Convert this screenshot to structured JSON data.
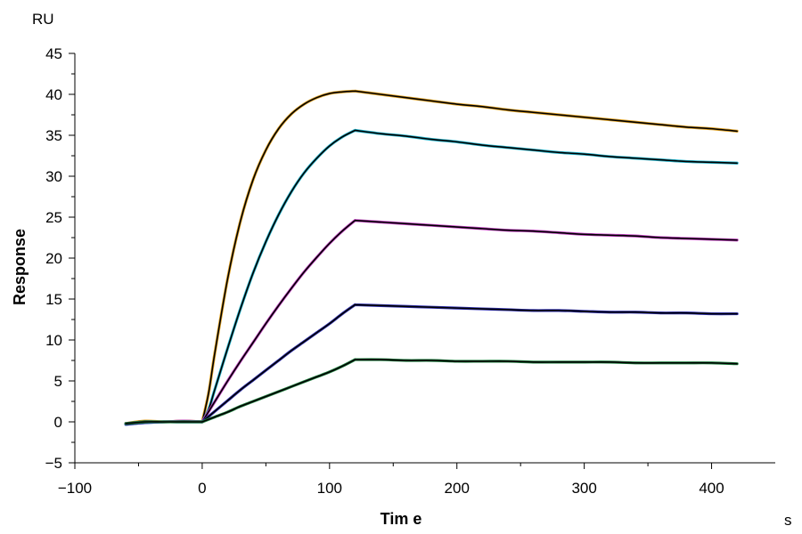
{
  "chart_data": {
    "type": "line",
    "title": "",
    "xlabel": "Tim e",
    "ylabel": "Response",
    "x_unit": "s",
    "y_unit": "RU",
    "xlim": [
      -100,
      450
    ],
    "ylim": [
      -5,
      45
    ],
    "x_ticks": [
      -100,
      0,
      100,
      200,
      300,
      400
    ],
    "y_ticks": [
      -5,
      0,
      5,
      10,
      15,
      20,
      25,
      30,
      35,
      40,
      45
    ],
    "grid": false,
    "legend": "none",
    "association_end": 120,
    "series": [
      {
        "color": "#e0a020",
        "x": [
          -60,
          -45,
          -30,
          -15,
          0,
          5,
          10,
          20,
          30,
          40,
          50,
          60,
          70,
          80,
          90,
          100,
          110,
          120,
          140,
          160,
          180,
          200,
          220,
          240,
          260,
          280,
          300,
          320,
          340,
          360,
          380,
          400,
          420
        ],
        "y": [
          -0.2,
          0.1,
          0.0,
          0.1,
          0.0,
          3.5,
          8.5,
          17.5,
          24.5,
          29.6,
          33.2,
          35.8,
          37.6,
          38.8,
          39.6,
          40.1,
          40.3,
          40.4,
          40.0,
          39.6,
          39.2,
          38.8,
          38.5,
          38.1,
          37.8,
          37.5,
          37.2,
          36.9,
          36.6,
          36.3,
          36.0,
          35.8,
          35.5
        ]
      },
      {
        "color": "#20b0c8",
        "x": [
          -60,
          -45,
          -30,
          -15,
          0,
          5,
          10,
          20,
          30,
          40,
          50,
          60,
          70,
          80,
          90,
          100,
          110,
          120,
          140,
          160,
          180,
          200,
          220,
          240,
          260,
          280,
          300,
          320,
          340,
          360,
          380,
          400,
          420
        ],
        "y": [
          -0.3,
          -0.1,
          0.0,
          0.0,
          0.0,
          1.5,
          4.0,
          9.0,
          13.8,
          18.2,
          22.0,
          25.3,
          28.1,
          30.4,
          32.2,
          33.7,
          34.8,
          35.6,
          35.2,
          34.9,
          34.5,
          34.2,
          33.8,
          33.5,
          33.2,
          32.9,
          32.7,
          32.4,
          32.2,
          32.0,
          31.8,
          31.7,
          31.6
        ]
      },
      {
        "color": "#c040c0",
        "x": [
          -60,
          -45,
          -30,
          -15,
          0,
          10,
          20,
          30,
          40,
          50,
          60,
          70,
          80,
          90,
          100,
          110,
          120,
          140,
          160,
          180,
          200,
          220,
          240,
          260,
          280,
          300,
          320,
          340,
          360,
          380,
          400,
          420
        ],
        "y": [
          -0.2,
          0.0,
          0.0,
          0.1,
          0.0,
          2.5,
          5.0,
          7.4,
          9.7,
          12.0,
          14.2,
          16.3,
          18.3,
          20.1,
          21.8,
          23.3,
          24.6,
          24.4,
          24.2,
          24.0,
          23.8,
          23.6,
          23.4,
          23.3,
          23.1,
          22.9,
          22.8,
          22.7,
          22.5,
          22.4,
          22.3,
          22.2
        ]
      },
      {
        "color": "#3030b0",
        "x": [
          -60,
          -45,
          -30,
          -15,
          0,
          10,
          20,
          30,
          40,
          50,
          60,
          70,
          80,
          90,
          100,
          110,
          120,
          140,
          160,
          180,
          200,
          220,
          240,
          260,
          280,
          300,
          320,
          340,
          360,
          380,
          400,
          420
        ],
        "y": [
          -0.3,
          -0.1,
          0.0,
          0.0,
          0.0,
          1.3,
          2.6,
          3.9,
          5.1,
          6.3,
          7.5,
          8.7,
          9.8,
          10.9,
          12.0,
          13.2,
          14.3,
          14.2,
          14.1,
          14.0,
          13.9,
          13.8,
          13.7,
          13.6,
          13.6,
          13.5,
          13.4,
          13.4,
          13.3,
          13.3,
          13.2,
          13.2
        ]
      },
      {
        "color": "#208040",
        "x": [
          -60,
          -45,
          -30,
          -15,
          0,
          10,
          20,
          30,
          40,
          50,
          60,
          70,
          80,
          90,
          100,
          110,
          120,
          140,
          160,
          180,
          200,
          220,
          240,
          260,
          280,
          300,
          320,
          340,
          360,
          380,
          400,
          420
        ],
        "y": [
          -0.2,
          0.0,
          0.0,
          0.0,
          0.0,
          0.6,
          1.2,
          1.9,
          2.5,
          3.1,
          3.7,
          4.3,
          4.9,
          5.5,
          6.1,
          6.8,
          7.6,
          7.6,
          7.5,
          7.5,
          7.4,
          7.4,
          7.4,
          7.3,
          7.3,
          7.3,
          7.3,
          7.2,
          7.2,
          7.2,
          7.2,
          7.1
        ]
      }
    ]
  }
}
